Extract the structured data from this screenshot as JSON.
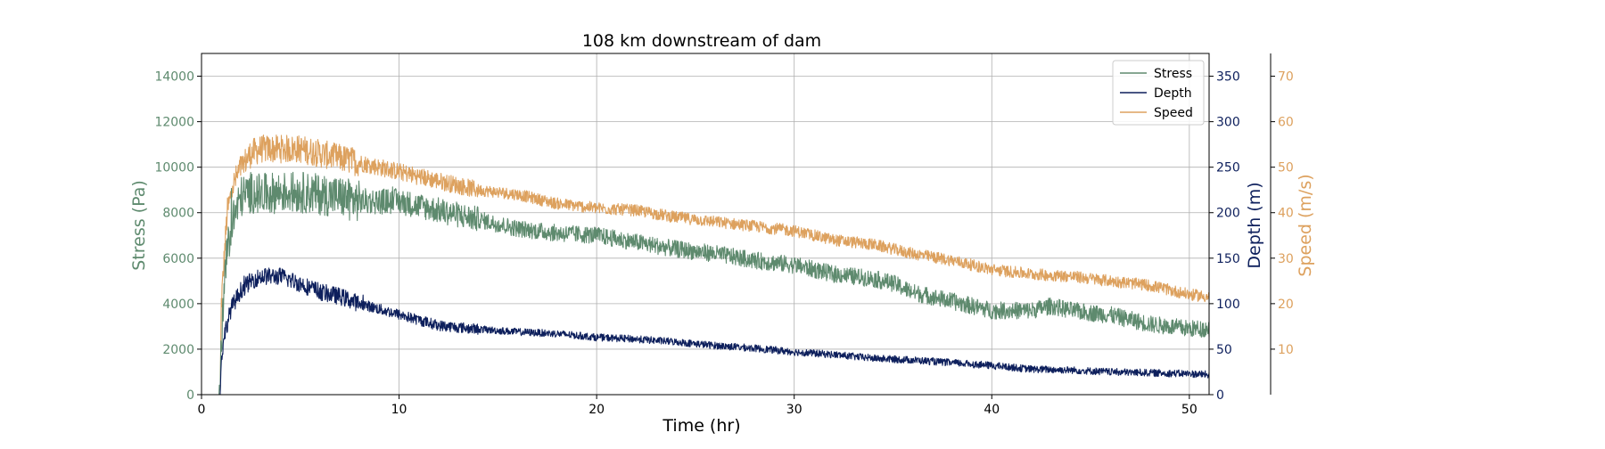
{
  "chart_data": {
    "type": "line",
    "title": "108 km downstream of dam",
    "xlabel": "Time (hr)",
    "xlim": [
      0,
      51
    ],
    "xticks": [
      0,
      10,
      20,
      30,
      40,
      50
    ],
    "grid": true,
    "legend_position": "top-right",
    "axes": {
      "stress": {
        "label": "Stress (Pa)",
        "color": "#5e8a6e",
        "ylim": [
          0,
          15000
        ],
        "ticks": [
          0,
          2000,
          4000,
          6000,
          8000,
          10000,
          12000,
          14000
        ]
      },
      "depth": {
        "label": "Depth (m)",
        "color": "#0d1f5c",
        "ylim": [
          0,
          375
        ],
        "ticks": [
          0,
          50,
          100,
          150,
          200,
          250,
          300,
          350
        ]
      },
      "speed": {
        "label": "Speed (m/s)",
        "color": "#dda15e",
        "ylim": [
          0,
          75
        ],
        "ticks": [
          10,
          20,
          30,
          40,
          50,
          60,
          70
        ]
      }
    },
    "series": [
      {
        "name": "Stress",
        "axis": "stress",
        "color": "#5e8a6e",
        "noise": 380,
        "x": [
          0,
          0.9,
          1.0,
          1.2,
          1.5,
          2,
          2.5,
          3,
          4,
          5,
          6,
          7,
          8,
          10,
          12,
          14,
          16,
          18,
          20,
          22,
          24,
          26,
          28,
          30,
          32,
          34,
          35,
          36,
          38,
          40,
          42,
          43,
          44,
          46,
          48,
          50,
          51
        ],
        "y": [
          0,
          0,
          2000,
          5500,
          7500,
          8700,
          8900,
          8800,
          8900,
          8900,
          8800,
          8700,
          8500,
          8500,
          8100,
          7700,
          7300,
          7100,
          7000,
          6700,
          6400,
          6200,
          5900,
          5700,
          5300,
          5100,
          4900,
          4500,
          4100,
          3700,
          3700,
          3900,
          3700,
          3500,
          3100,
          2900,
          2900
        ]
      },
      {
        "name": "Depth",
        "axis": "depth",
        "color": "#0d1f5c",
        "noise": 4,
        "x": [
          0,
          0.95,
          1.0,
          1.2,
          1.5,
          2,
          2.5,
          3,
          4,
          5,
          6,
          7,
          8,
          10,
          12,
          14,
          16,
          18,
          20,
          22,
          24,
          26,
          28,
          30,
          32,
          34,
          36,
          38,
          40,
          42,
          44,
          46,
          48,
          50,
          51
        ],
        "y": [
          0,
          0,
          40,
          70,
          95,
          115,
          125,
          130,
          130,
          122,
          113,
          108,
          100,
          88,
          76,
          72,
          69,
          67,
          63,
          61,
          58,
          54,
          51,
          47,
          44,
          40,
          38,
          35,
          32,
          28,
          27,
          25,
          24,
          23,
          22
        ]
      },
      {
        "name": "Speed",
        "axis": "speed",
        "color": "#dda15e",
        "noise": 1.3,
        "x": [
          0,
          0.95,
          1.0,
          1.3,
          1.6,
          2,
          2.5,
          3,
          4,
          5,
          6,
          7,
          8,
          10,
          12,
          14,
          16,
          18,
          20,
          22,
          24,
          26,
          28,
          30,
          32,
          34,
          36,
          38,
          40,
          42,
          44,
          46,
          48,
          50,
          51
        ],
        "y": [
          0,
          0,
          20,
          40,
          46,
          50,
          53,
          54,
          54,
          54,
          53,
          52,
          51,
          49,
          47,
          45,
          44,
          42,
          41,
          40.5,
          39,
          38,
          37,
          36,
          34,
          33,
          31,
          29.5,
          27.5,
          26.5,
          26,
          25,
          24,
          22,
          21.5
        ]
      }
    ]
  }
}
